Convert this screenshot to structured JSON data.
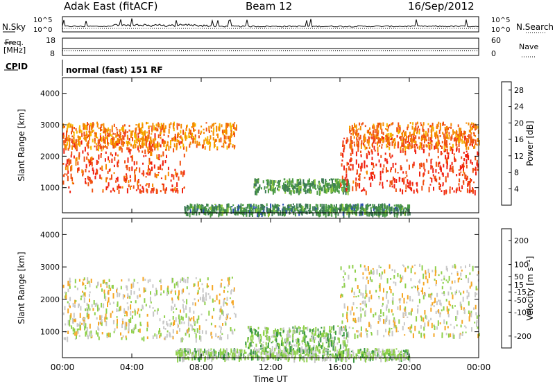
{
  "header": {
    "station": "Adak East (fitACF)",
    "beam": "Beam 12",
    "date": "16/Sep/2012"
  },
  "aux": {
    "nsky_label": "N.Sky",
    "nsearch_label": "N.Search",
    "freq_label_1": "Freq.",
    "freq_label_2": "[MHz]",
    "nave_label": "Nave",
    "cpid_label": "CPID",
    "cpid_text": "normal (fast) 151 RF",
    "noise_ticks": [
      "10^5",
      "10^0"
    ],
    "freq_ticks": [
      "18",
      "8"
    ],
    "nave_ticks": [
      "60",
      "0"
    ]
  },
  "colors": {
    "power_scale": [
      "#1428e6",
      "#2a4fb0",
      "#3d7b55",
      "#4a9a44",
      "#8cc83c",
      "#f6b800",
      "#f58a00",
      "#f05010",
      "#f02010"
    ],
    "velocity_scale": [
      "#1a3aa8",
      "#2b6e5a",
      "#3c9a44",
      "#8ed04a",
      "#c8c8c8",
      "#f5a623",
      "#f57a10",
      "#f04010",
      "#e81010"
    ],
    "ground_scatter": "#c0c0c0"
  },
  "chart_data": [
    {
      "type": "heatmap",
      "title": "Power",
      "ylabel": "Slant Range [km]",
      "xlabel": "Time UT",
      "x_ticks": [
        "00:00",
        "04:00",
        "08:00",
        "12:00",
        "16:00",
        "20:00",
        "00:00"
      ],
      "y_ticks": [
        1000,
        2000,
        3000,
        4000
      ],
      "ylim": [
        200,
        4500
      ],
      "xlim_hours": [
        0,
        24
      ],
      "colorbar": {
        "label": "Power [dB]",
        "ticks": [
          4,
          8,
          12,
          16,
          20,
          24,
          28
        ],
        "range": [
          0,
          30
        ]
      },
      "regions": [
        {
          "name": "near range band",
          "t_start": 7.0,
          "t_end": 20.0,
          "range_km": [
            200,
            500
          ],
          "value": 10
        },
        {
          "name": "morning scatter",
          "t_start": 0.0,
          "t_end": 7.0,
          "range_km": [
            900,
            2800
          ],
          "value": 26
        },
        {
          "name": "morning upper band",
          "t_start": 0.0,
          "t_end": 10.0,
          "range_km": [
            2300,
            3100
          ],
          "value": 22
        },
        {
          "name": "midday patch",
          "t_start": 11.0,
          "t_end": 16.5,
          "range_km": [
            900,
            1300
          ],
          "value": 11
        },
        {
          "name": "evening lower band",
          "t_start": 16.0,
          "t_end": 24.0,
          "range_km": [
            900,
            2700
          ],
          "value": 27
        },
        {
          "name": "evening upper band",
          "t_start": 16.5,
          "t_end": 24.0,
          "range_km": [
            2300,
            3100
          ],
          "value": 23
        }
      ]
    },
    {
      "type": "heatmap",
      "title": "Velocity",
      "ylabel": "Slant Range [km]",
      "xlabel": "Time UT",
      "x_ticks": [
        "00:00",
        "04:00",
        "08:00",
        "12:00",
        "16:00",
        "20:00",
        "00:00"
      ],
      "y_ticks": [
        1000,
        2000,
        3000,
        4000
      ],
      "ylim": [
        200,
        4500
      ],
      "xlim_hours": [
        0,
        24
      ],
      "colorbar": {
        "label": "Velocity [m s⁻¹]",
        "ticks": [
          200,
          100,
          50,
          15,
          -15,
          -50,
          -100,
          -200
        ],
        "range": [
          -250,
          250
        ]
      },
      "regions": [
        {
          "name": "near range band",
          "t_start": 6.5,
          "t_end": 20.0,
          "range_km": [
            200,
            500
          ],
          "value": 40
        },
        {
          "name": "morning ground scatter",
          "t_start": 0.0,
          "t_end": 10.0,
          "range_km": [
            800,
            2700
          ],
          "value": 0
        },
        {
          "name": "midday patch",
          "t_start": 10.5,
          "t_end": 16.5,
          "range_km": [
            500,
            1200
          ],
          "value": 60
        },
        {
          "name": "evening ground scatter",
          "t_start": 16.0,
          "t_end": 24.0,
          "range_km": [
            900,
            3100
          ],
          "value": 0
        }
      ]
    }
  ]
}
